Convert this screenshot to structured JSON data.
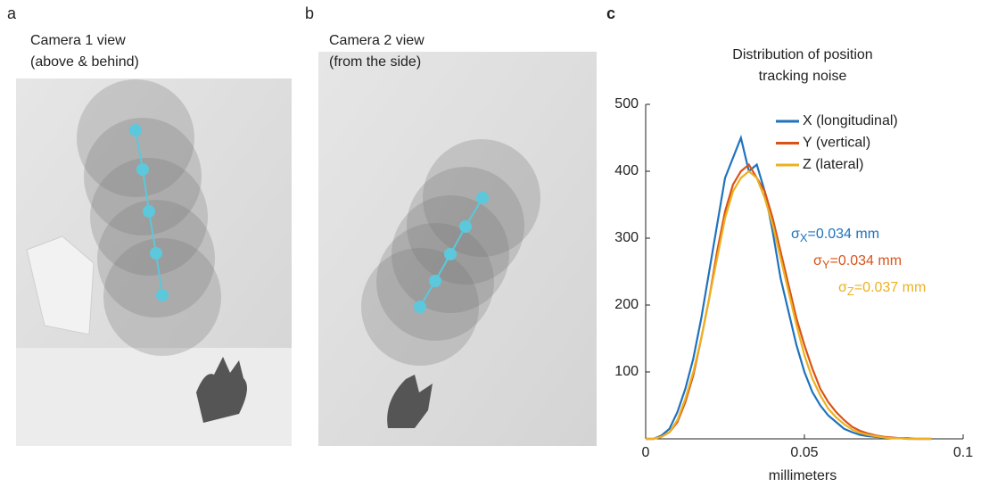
{
  "panels": [
    {
      "label": "a",
      "caption": [
        "Camera 1 view",
        "(above & behind)"
      ]
    },
    {
      "label": "b",
      "caption": [
        "Camera 2 view",
        "(from the side)"
      ]
    }
  ],
  "chart_data": {
    "type": "line",
    "panel_label": "c",
    "title": [
      "Distribution of position",
      "tracking noise"
    ],
    "x_label": "millimeters",
    "x": [
      0,
      0.0025,
      0.005,
      0.0075,
      0.01,
      0.0125,
      0.015,
      0.0175,
      0.02,
      0.0225,
      0.025,
      0.0275,
      0.03,
      0.0325,
      0.035,
      0.0375,
      0.04,
      0.0425,
      0.045,
      0.0475,
      0.05,
      0.0525,
      0.055,
      0.0575,
      0.06,
      0.0625,
      0.065,
      0.0675,
      0.07,
      0.0725,
      0.075,
      0.0775,
      0.08,
      0.0825,
      0.085,
      0.0875,
      0.09
    ],
    "series": [
      {
        "name": "X (longitudinal)",
        "color": "#1f72bd",
        "values": [
          0,
          0,
          5,
          15,
          40,
          75,
          120,
          180,
          250,
          320,
          390,
          420,
          450,
          400,
          410,
          370,
          310,
          240,
          190,
          140,
          100,
          70,
          50,
          35,
          25,
          15,
          10,
          6,
          4,
          3,
          2,
          1,
          1,
          0,
          0,
          0,
          0
        ]
      },
      {
        "name": "Y (vertical)",
        "color": "#d95319",
        "values": [
          0,
          0,
          3,
          10,
          25,
          55,
          95,
          150,
          210,
          280,
          340,
          380,
          400,
          410,
          390,
          370,
          330,
          280,
          230,
          180,
          140,
          105,
          75,
          55,
          40,
          28,
          18,
          12,
          8,
          5,
          3,
          2,
          1,
          1,
          0,
          0,
          0
        ]
      },
      {
        "name": "Z (lateral)",
        "color": "#edb120",
        "values": [
          0,
          0,
          3,
          10,
          28,
          60,
          100,
          150,
          210,
          270,
          330,
          370,
          390,
          400,
          390,
          360,
          320,
          270,
          220,
          170,
          125,
          90,
          65,
          45,
          32,
          22,
          14,
          9,
          6,
          4,
          2,
          1,
          1,
          0,
          0,
          0,
          0
        ]
      }
    ],
    "annotations": [
      {
        "symbol": "σ",
        "sub": "X",
        "text": "=0.034 mm",
        "color": "#1f72bd"
      },
      {
        "symbol": "σ",
        "sub": "Y",
        "text": "=0.034 mm",
        "color": "#d95319"
      },
      {
        "symbol": "σ",
        "sub": "Z",
        "text": "=0.037 mm",
        "color": "#edb120"
      }
    ],
    "xlim": [
      0,
      0.1
    ],
    "xticks": [
      0,
      0.05,
      0.1
    ],
    "ylim": [
      0,
      500
    ],
    "yticks": [
      100,
      200,
      300,
      400,
      500
    ],
    "legend": "upper right"
  }
}
